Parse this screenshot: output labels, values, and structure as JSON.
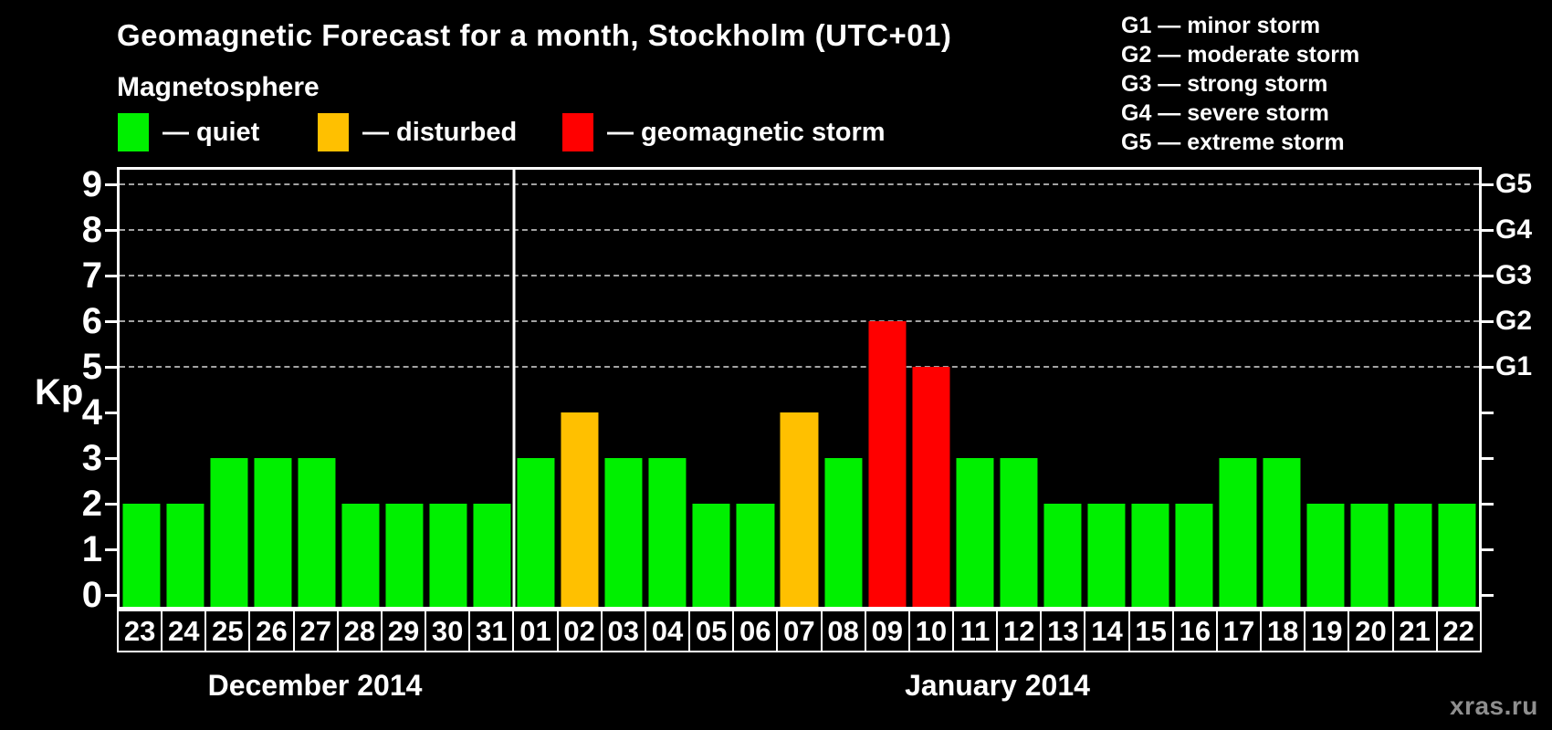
{
  "header": {
    "title": "Geomagnetic Forecast for a month, Stockholm (UTC+01)",
    "legend_heading": "Magnetosphere",
    "legend_items": [
      {
        "name": "quiet",
        "label": "— quiet",
        "color": "#00f000"
      },
      {
        "name": "disturbed",
        "label": "— disturbed",
        "color": "#ffc000"
      },
      {
        "name": "storm",
        "label": "— geomagnetic storm",
        "color": "#ff0000"
      }
    ],
    "g_scale_legend": [
      "G1 — minor storm",
      "G2 — moderate storm",
      "G3 — strong storm",
      "G4 — severe storm",
      "G5 — extreme storm"
    ]
  },
  "watermark": "xras.ru",
  "colors": {
    "quiet": "#00f000",
    "disturbed": "#ffc000",
    "storm": "#ff0000",
    "background": "#000000",
    "axis": "#ffffff",
    "gridline": "#a3a3a3",
    "watermark_text": "#8f8f8f"
  },
  "chart_data": {
    "type": "bar",
    "title": "Geomagnetic Forecast for a month, Stockholm (UTC+01)",
    "xlabel": "",
    "ylabel": "Kp",
    "ylim": [
      0,
      9
    ],
    "y_ticks": [
      0,
      1,
      2,
      3,
      4,
      5,
      6,
      7,
      8,
      9
    ],
    "gridlines_kp": [
      5,
      6,
      7,
      8,
      9
    ],
    "grid": "dashed horizontal lines at storm levels only",
    "legend_position": "top-left",
    "right_axis_labels": [
      {
        "kp": 5,
        "label": "G1"
      },
      {
        "kp": 6,
        "label": "G2"
      },
      {
        "kp": 7,
        "label": "G3"
      },
      {
        "kp": 8,
        "label": "G4"
      },
      {
        "kp": 9,
        "label": "G5"
      }
    ],
    "months": [
      {
        "label": "December 2014",
        "day_count": 9
      },
      {
        "label": "January 2014",
        "day_count": 22
      }
    ],
    "categories": [
      "23",
      "24",
      "25",
      "26",
      "27",
      "28",
      "29",
      "30",
      "31",
      "01",
      "02",
      "03",
      "04",
      "05",
      "06",
      "07",
      "08",
      "09",
      "10",
      "11",
      "12",
      "13",
      "14",
      "15",
      "16",
      "17",
      "18",
      "19",
      "20",
      "21",
      "22"
    ],
    "values": [
      2,
      2,
      3,
      3,
      3,
      2,
      2,
      2,
      2,
      3,
      4,
      3,
      3,
      2,
      2,
      4,
      3,
      6,
      5,
      3,
      3,
      2,
      2,
      2,
      2,
      3,
      3,
      2,
      2,
      2,
      2
    ],
    "status": [
      "quiet",
      "quiet",
      "quiet",
      "quiet",
      "quiet",
      "quiet",
      "quiet",
      "quiet",
      "quiet",
      "quiet",
      "disturbed",
      "quiet",
      "quiet",
      "quiet",
      "quiet",
      "disturbed",
      "quiet",
      "storm",
      "storm",
      "quiet",
      "quiet",
      "quiet",
      "quiet",
      "quiet",
      "quiet",
      "quiet",
      "quiet",
      "quiet",
      "quiet",
      "quiet",
      "quiet"
    ]
  }
}
